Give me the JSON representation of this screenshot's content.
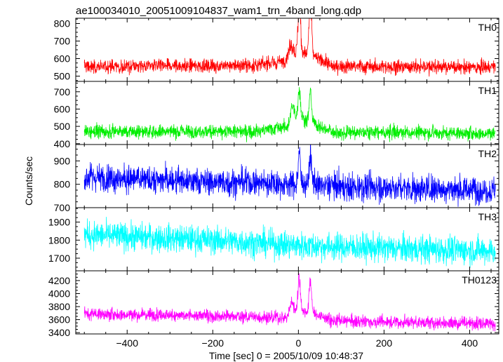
{
  "chart_data": {
    "type": "line",
    "title": "ae100034010_20051009104837_wam1_trn_4band_long.qdp",
    "xlabel": "Time [sec] 0 = 2005/10/09 10:48:37",
    "ylabel": "Counts/sec",
    "xlim": [
      -520,
      468
    ],
    "x_ticks": [
      -400,
      -200,
      0,
      200,
      400
    ],
    "x_range": [
      -500,
      460
    ],
    "grid": false,
    "panels": [
      {
        "name": "TH0",
        "color": "#ff0000",
        "ylim": [
          470,
          830
        ],
        "y_ticks": [
          500,
          600,
          700,
          800
        ],
        "baseline": [
          [
            -500,
            555
          ],
          [
            -100,
            560
          ],
          [
            -20,
            590
          ],
          [
            0,
            640
          ],
          [
            30,
            620
          ],
          [
            80,
            555
          ],
          [
            460,
            550
          ]
        ],
        "noise": 28,
        "peaks": [
          {
            "x": 2,
            "y": 1000,
            "w": 4
          },
          {
            "x": 28,
            "y": 1000,
            "w": 4
          },
          {
            "x": -18,
            "y": 700,
            "w": 8
          }
        ]
      },
      {
        "name": "TH1",
        "color": "#00ee00",
        "ylim": [
          395,
          760
        ],
        "y_ticks": [
          400,
          500,
          600,
          700
        ],
        "baseline": [
          [
            -500,
            470
          ],
          [
            -100,
            470
          ],
          [
            -20,
            500
          ],
          [
            0,
            560
          ],
          [
            30,
            520
          ],
          [
            80,
            465
          ],
          [
            460,
            460
          ]
        ],
        "noise": 28,
        "peaks": [
          {
            "x": 2,
            "y": 760,
            "w": 4
          },
          {
            "x": 28,
            "y": 745,
            "w": 4
          },
          {
            "x": -14,
            "y": 640,
            "w": 6
          }
        ]
      },
      {
        "name": "TH2",
        "color": "#0000ff",
        "ylim": [
          700,
          970
        ],
        "y_ticks": [
          700,
          800,
          900
        ],
        "baseline": [
          [
            -500,
            830
          ],
          [
            -200,
            810
          ],
          [
            0,
            800
          ],
          [
            200,
            785
          ],
          [
            460,
            775
          ]
        ],
        "noise": 42,
        "peaks": [
          {
            "x": 2,
            "y": 960,
            "w": 4
          },
          {
            "x": 28,
            "y": 940,
            "w": 4
          }
        ]
      },
      {
        "name": "TH3",
        "color": "#00ffff",
        "ylim": [
          1630,
          1980
        ],
        "y_ticks": [
          1700,
          1800,
          1900
        ],
        "baseline": [
          [
            -500,
            1830
          ],
          [
            -200,
            1800
          ],
          [
            0,
            1770
          ],
          [
            200,
            1755
          ],
          [
            460,
            1740
          ]
        ],
        "noise": 55,
        "peaks": []
      },
      {
        "name": "TH0123",
        "color": "#ff00ff",
        "ylim": [
          3380,
          4350
        ],
        "y_ticks": [
          3400,
          3600,
          3800,
          4000,
          4200
        ],
        "baseline": [
          [
            -500,
            3690
          ],
          [
            -200,
            3660
          ],
          [
            -30,
            3630
          ],
          [
            0,
            3760
          ],
          [
            30,
            3700
          ],
          [
            80,
            3580
          ],
          [
            460,
            3540
          ]
        ],
        "noise": 70,
        "peaks": [
          {
            "x": 2,
            "y": 4350,
            "w": 4
          },
          {
            "x": 28,
            "y": 4300,
            "w": 4
          },
          {
            "x": -15,
            "y": 3900,
            "w": 6
          }
        ]
      }
    ]
  }
}
